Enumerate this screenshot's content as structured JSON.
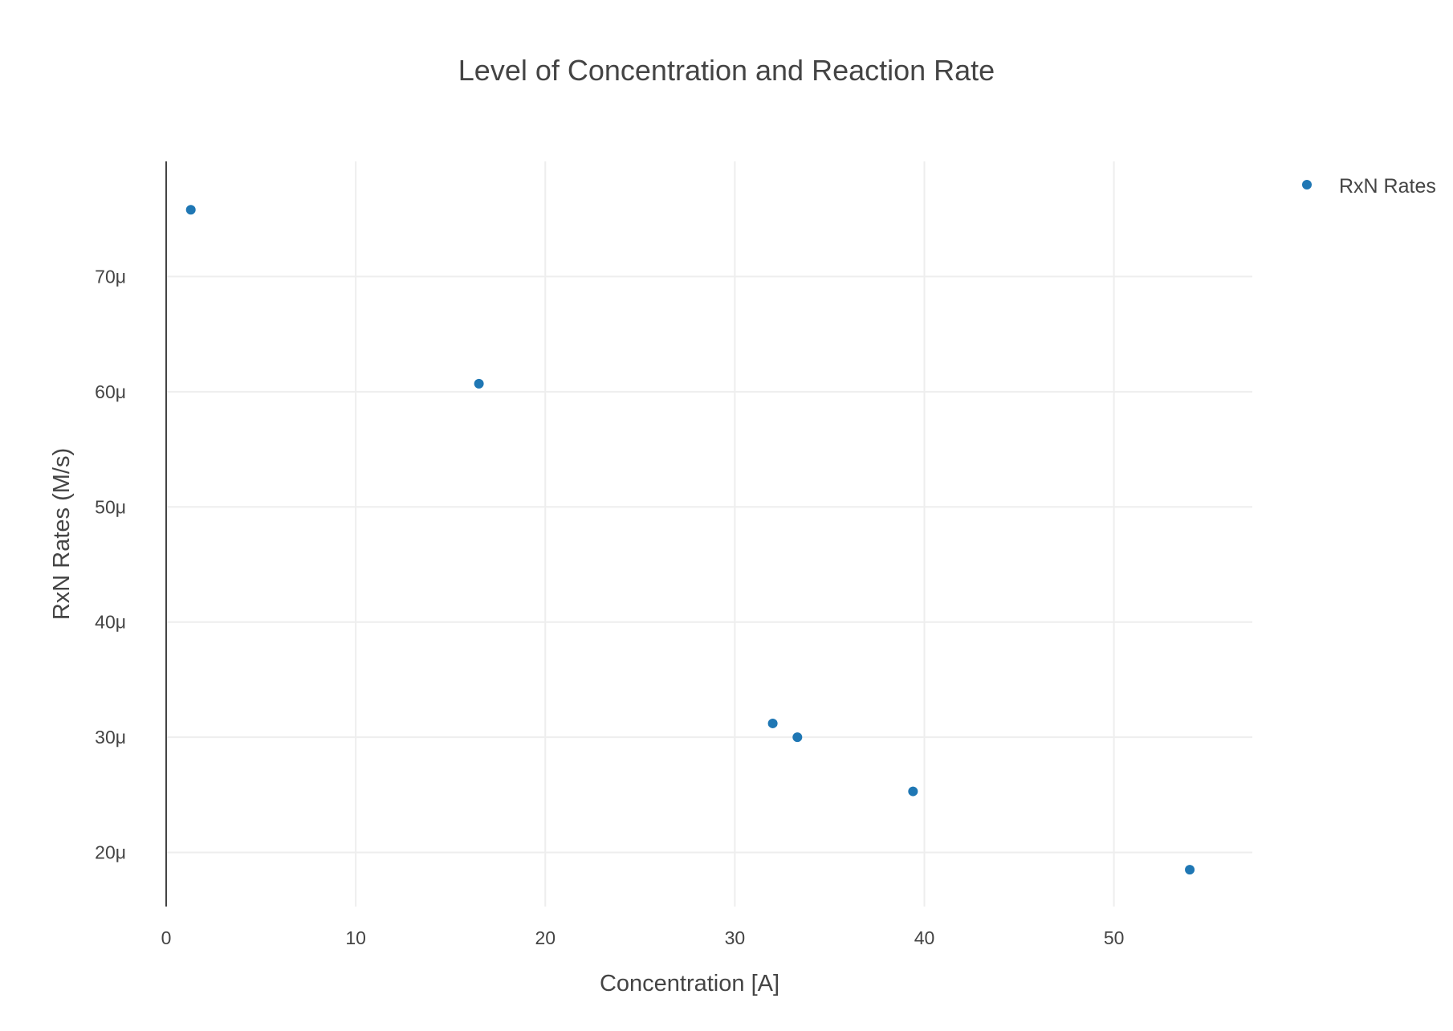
{
  "chart_data": {
    "type": "scatter",
    "title": "Level of Concentration and Reaction Rate",
    "xlabel": "Concentration [A]",
    "ylabel": "RxN Rates (M/s)",
    "xlim": [
      0,
      57.3
    ],
    "ylim": [
      1.53e-05,
      8e-05
    ],
    "x_ticks": [
      0,
      10,
      20,
      30,
      40,
      50
    ],
    "x_tick_labels": [
      "0",
      "10",
      "20",
      "30",
      "40",
      "50"
    ],
    "y_ticks": [
      2e-05,
      3e-05,
      4e-05,
      5e-05,
      6e-05,
      7e-05
    ],
    "y_tick_labels": [
      "20μ",
      "30μ",
      "40μ",
      "50μ",
      "60μ",
      "70μ"
    ],
    "grid": true,
    "legend_position": "top-right",
    "series": [
      {
        "name": "RxN Rates",
        "color": "#1f77b4",
        "x": [
          1.3,
          16.5,
          32.0,
          33.3,
          39.4,
          54.0
        ],
        "y": [
          7.58e-05,
          6.07e-05,
          3.12e-05,
          3e-05,
          2.53e-05,
          1.85e-05
        ]
      }
    ]
  }
}
